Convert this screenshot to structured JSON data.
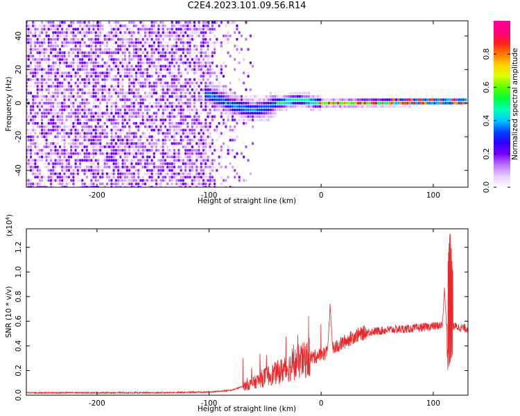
{
  "chart_data": [
    {
      "type": "heatmap",
      "title": "C2E4.2023.101.09.56.R14",
      "xlabel": "Height of straight line (km)",
      "ylabel": "Frequency (Hz)",
      "xlim": [
        -263,
        131
      ],
      "ylim": [
        -50,
        49
      ],
      "x_ticks": [
        -200,
        -100,
        0,
        100
      ],
      "y_ticks": [
        -40,
        -20,
        0,
        20,
        40
      ],
      "colorbar": {
        "label": "Normalized spectral amplitude",
        "range": [
          0,
          1
        ],
        "ticks": [
          "0.0",
          "0.2",
          "0.4",
          "0.6",
          "0.8"
        ],
        "colors": [
          "#ffffff",
          "#e7ccff",
          "#b973ff",
          "#7a00ff",
          "#2b00ff",
          "#0044ff",
          "#00c8ff",
          "#00ffb4",
          "#00ff3c",
          "#5aff00",
          "#dcff00",
          "#ffd200",
          "#ff7800",
          "#ff1e1e",
          "#ff007f",
          "#ff0096"
        ]
      },
      "ridge": [
        {
          "x": -100,
          "f": 5
        },
        {
          "x": -90,
          "f": 2
        },
        {
          "x": -80,
          "f": -1
        },
        {
          "x": -70,
          "f": -3
        },
        {
          "x": -60,
          "f": -4
        },
        {
          "x": -50,
          "f": -3
        },
        {
          "x": -40,
          "f": 0
        },
        {
          "x": -30,
          "f": 1
        },
        {
          "x": -20,
          "f": 2
        },
        {
          "x": -10,
          "f": 1
        },
        {
          "x": 0,
          "f": 0
        },
        {
          "x": 20,
          "f": 0
        },
        {
          "x": 50,
          "f": 0.5
        },
        {
          "x": 80,
          "f": 1
        },
        {
          "x": 100,
          "f": 1
        },
        {
          "x": 131,
          "f": 1
        }
      ]
    },
    {
      "type": "line",
      "xlabel": "Height of straight line (km)",
      "ylabel": "SNR (10 * v/v)",
      "y_multiplier": "(x10",
      "y_multiplier_exp": "4",
      "y_multiplier_close": ")",
      "xlim": [
        -263,
        131
      ],
      "ylim": [
        0,
        1.35
      ],
      "x_ticks": [
        -200,
        -100,
        0,
        100
      ],
      "y_ticks": [
        "0.0",
        "0.2",
        "0.4",
        "0.6",
        "0.8",
        "1.0",
        "1.2"
      ],
      "color": "#e8282a",
      "envelope": [
        {
          "x": -263,
          "y": 0.02
        },
        {
          "x": -150,
          "y": 0.02
        },
        {
          "x": -100,
          "y": 0.025
        },
        {
          "x": -80,
          "y": 0.04
        },
        {
          "x": -60,
          "y": 0.1
        },
        {
          "x": -50,
          "y": 0.15
        },
        {
          "x": -40,
          "y": 0.18
        },
        {
          "x": -30,
          "y": 0.22
        },
        {
          "x": -20,
          "y": 0.27
        },
        {
          "x": -10,
          "y": 0.3
        },
        {
          "x": 0,
          "y": 0.33
        },
        {
          "x": 10,
          "y": 0.37
        },
        {
          "x": 20,
          "y": 0.43
        },
        {
          "x": 30,
          "y": 0.48
        },
        {
          "x": 40,
          "y": 0.51
        },
        {
          "x": 60,
          "y": 0.53
        },
        {
          "x": 80,
          "y": 0.54
        },
        {
          "x": 100,
          "y": 0.56
        },
        {
          "x": 110,
          "y": 0.57
        },
        {
          "x": 131,
          "y": 0.54
        }
      ],
      "spikes": [
        {
          "x": 8,
          "y": 0.72
        },
        {
          "x": 110,
          "y": 0.85
        },
        {
          "x": 115,
          "y": 1.35
        }
      ]
    }
  ]
}
